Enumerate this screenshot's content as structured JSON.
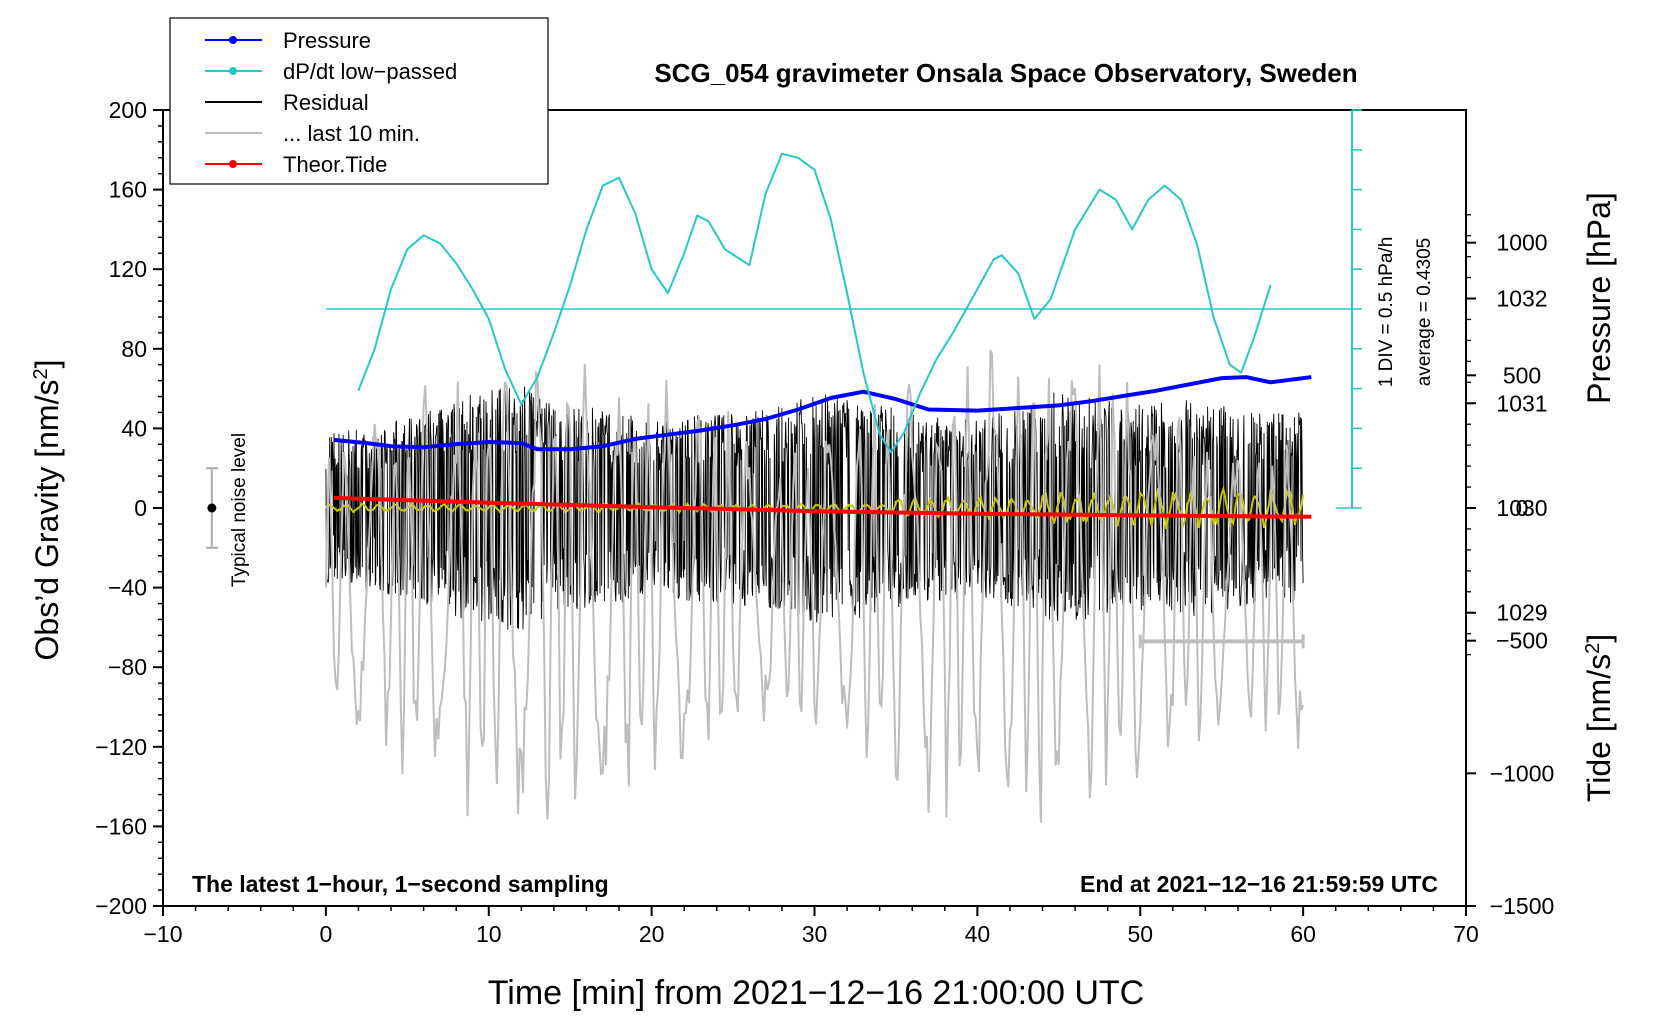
{
  "chart_data": {
    "type": "line",
    "title": "SCG_054 gravimeter Onsala Space Observatory, Sweden",
    "xlabel": "Time [min] from 2021−12−16 21:00:00 UTC",
    "ylabel_left": "Obs’d Gravity [nm/s",
    "ylabel_left_sup": "2",
    "ylabel_left_end": "]",
    "ylabel_right_top": "Pressure [hPa]",
    "ylabel_right_bottom": "Tide [nm/s",
    "ylabel_right_bottom_sup": "2",
    "ylabel_right_bottom_end": "]",
    "xlim": [
      -10,
      70
    ],
    "ylim": [
      -200,
      200
    ],
    "pressure_lim": [
      1026.2,
      1033.8
    ],
    "tide_lim": [
      -1500,
      1500
    ],
    "x_ticks": [
      "−10",
      "0",
      "10",
      "20",
      "30",
      "40",
      "50",
      "60",
      "70"
    ],
    "x_tick_values": [
      -10,
      0,
      10,
      20,
      30,
      40,
      50,
      60,
      70
    ],
    "y_ticks": [
      "200",
      "160",
      "120",
      "80",
      "40",
      "0",
      "−40",
      "−80",
      "−120",
      "−160",
      "−200"
    ],
    "y_tick_values": [
      200,
      160,
      120,
      80,
      40,
      0,
      -40,
      -80,
      -120,
      -160,
      -200
    ],
    "pressure_ticks": [
      "1032",
      "1031",
      "1030",
      "1029"
    ],
    "pressure_tick_values": [
      1032,
      1031,
      1030,
      1029
    ],
    "tide_ticks": [
      "1000",
      "500",
      "0",
      "−500",
      "−1000",
      "−1500"
    ],
    "tide_tick_values": [
      1000,
      500,
      0,
      -500,
      -1000,
      -1500
    ],
    "legend": [
      {
        "label": "Pressure",
        "color": "#0000ff",
        "marker": true
      },
      {
        "label": "dP/dt low−passed",
        "color": "#27c8c8",
        "marker": true
      },
      {
        "label": "Residual",
        "color": "#000000",
        "marker": false
      },
      {
        "label": "... last 10 min.",
        "color": "#bdbdbd",
        "marker": false
      },
      {
        "label": "Theor.Tide",
        "color": "#ff0000",
        "marker": true
      }
    ],
    "legend_position": "top-left",
    "annotations": {
      "noise_label": "Typical noise level",
      "noise_range": [
        -20,
        20
      ],
      "noise_x": -7,
      "scale_div": "1 DIV = 0.5 hPa/h",
      "scale_avg": "average = 0.4305",
      "scale_x": 63,
      "scale_range": [
        0,
        200
      ],
      "dpdt_zero": 100,
      "bottom_left": "The latest 1−hour, 1−second sampling",
      "bottom_right": "End at 2021−12−16 21:59:59 UTC",
      "last10_bar": {
        "x": [
          50,
          60
        ],
        "y": -67
      }
    },
    "series": [
      {
        "name": "Pressure",
        "axis": "pressure",
        "color": "#0000ff",
        "x": [
          0.5,
          2.5,
          4,
          6,
          8,
          10,
          12,
          13,
          15,
          17,
          19,
          21,
          23,
          25,
          27,
          29,
          31,
          33,
          35,
          37,
          40,
          43,
          45,
          47,
          49,
          51,
          53,
          55,
          56.5,
          58,
          60.5
        ],
        "y": [
          1030.65,
          1030.62,
          1030.59,
          1030.58,
          1030.61,
          1030.63,
          1030.62,
          1030.56,
          1030.56,
          1030.59,
          1030.66,
          1030.7,
          1030.74,
          1030.79,
          1030.85,
          1030.94,
          1031.05,
          1031.11,
          1031.04,
          1030.94,
          1030.93,
          1030.96,
          1030.98,
          1031.02,
          1031.07,
          1031.12,
          1031.18,
          1031.24,
          1031.25,
          1031.2,
          1031.25
        ]
      },
      {
        "name": "dP/dt low-passed",
        "axis": "gravity",
        "color": "#27c8c8",
        "x": [
          2,
          3,
          4,
          5,
          6,
          7,
          8,
          9,
          10,
          11,
          12,
          13,
          14,
          15,
          16,
          17,
          18,
          19,
          20,
          21,
          22,
          22.8,
          23.5,
          24.5,
          26,
          27,
          28,
          29,
          30,
          31,
          32,
          33,
          34,
          34.7,
          35.5,
          36.5,
          37.5,
          38.5,
          40,
          41,
          41.5,
          42.5,
          43.5,
          44.5,
          46,
          47.5,
          48.5,
          49.5,
          50.5,
          51.5,
          52.5,
          53.5,
          54.5,
          55.5,
          56.2,
          57,
          58
        ],
        "y": [
          59,
          80,
          110,
          130,
          137,
          133,
          123,
          110,
          95,
          70,
          52,
          66,
          88,
          112,
          140,
          162,
          166,
          148,
          120,
          108,
          128,
          147,
          144,
          130,
          122,
          158,
          178,
          176,
          170,
          145,
          108,
          68,
          37,
          28,
          38,
          58,
          75,
          88,
          110,
          125,
          127,
          118,
          95,
          105,
          140,
          160,
          155,
          140,
          155,
          162,
          155,
          132,
          96,
          72,
          68,
          86,
          112
        ]
      },
      {
        "name": "Theor.Tide",
        "axis": "tide",
        "color": "#ff0000",
        "x": [
          0.5,
          10,
          20,
          30,
          40,
          50,
          60.5
        ],
        "y": [
          38,
          20,
          3,
          -12,
          -22,
          -28,
          -33
        ]
      }
    ]
  }
}
